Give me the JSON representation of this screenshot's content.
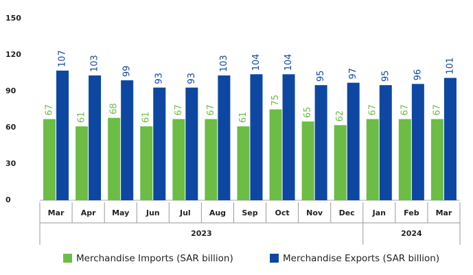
{
  "chart_data": {
    "type": "bar",
    "categories": [
      "Mar",
      "Apr",
      "May",
      "Jun",
      "Jul",
      "Aug",
      "Sep",
      "Oct",
      "Nov",
      "Dec",
      "Jan",
      "Feb",
      "Mar"
    ],
    "years": [
      "2023",
      "2023",
      "2023",
      "2023",
      "2023",
      "2023",
      "2023",
      "2023",
      "2023",
      "2023",
      "2024",
      "2024",
      "2024"
    ],
    "series": [
      {
        "name": "Merchandise Imports (SAR billion)",
        "color": "#6cbd45",
        "values": [
          67,
          61,
          68,
          61,
          67,
          67,
          61,
          75,
          65,
          62,
          67,
          67,
          67
        ]
      },
      {
        "name": "Merchandise Exports (SAR billion)",
        "color": "#0d47a1",
        "values": [
          107,
          103,
          99,
          93,
          93,
          103,
          104,
          104,
          95,
          97,
          95,
          96,
          101
        ]
      }
    ],
    "ylim": [
      0,
      150
    ],
    "yticks": [
      0,
      30,
      60,
      90,
      120,
      150
    ],
    "grid": false,
    "legend": "bottom"
  }
}
